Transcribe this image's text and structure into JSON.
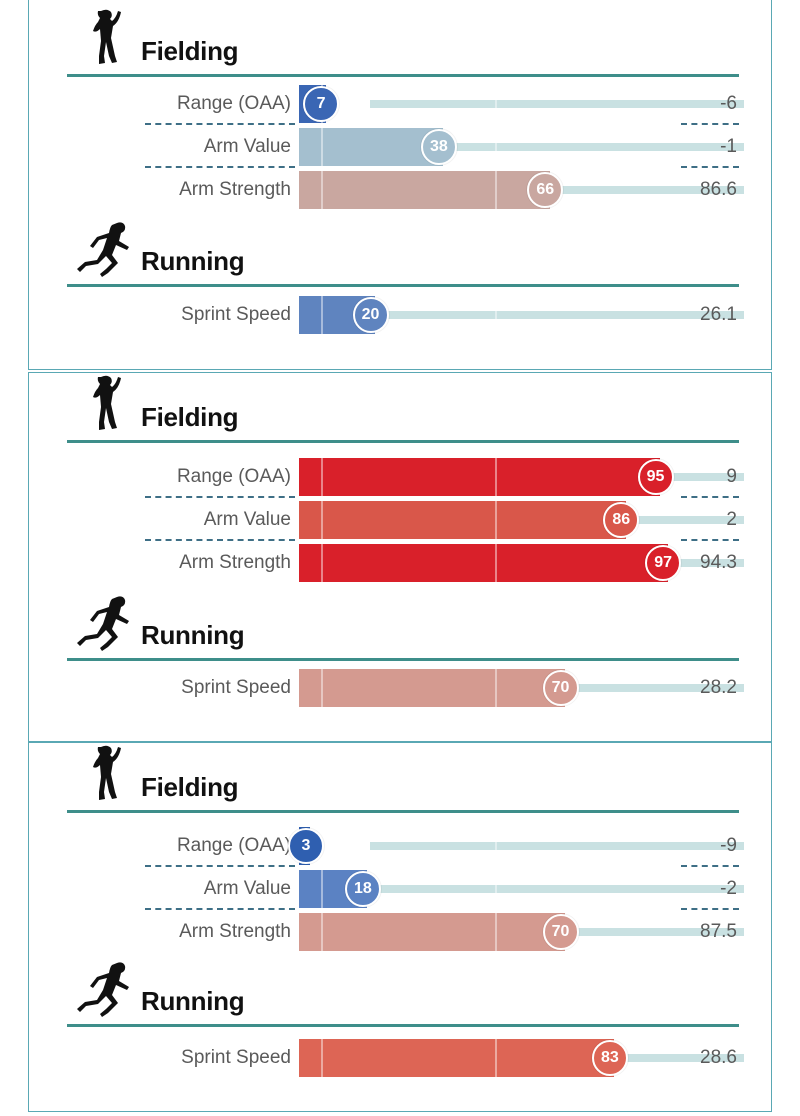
{
  "panels": [
    {
      "fielding": {
        "title": "Fielding",
        "rows": [
          {
            "label": "Range (OAA)",
            "percentile": 7,
            "value": "-6",
            "color": "#3a66b4"
          },
          {
            "label": "Arm Value",
            "percentile": 38,
            "value": "-1",
            "color": "#a4bfcf"
          },
          {
            "label": "Arm Strength",
            "percentile": 66,
            "value": "86.6",
            "color": "#c9a7a0"
          }
        ]
      },
      "running": {
        "title": "Running",
        "rows": [
          {
            "label": "Sprint Speed",
            "percentile": 20,
            "value": "26.1",
            "color": "#5f84bf"
          }
        ]
      }
    },
    {
      "fielding": {
        "title": "Fielding",
        "rows": [
          {
            "label": "Range (OAA)",
            "percentile": 95,
            "value": "9",
            "color": "#d9202a"
          },
          {
            "label": "Arm Value",
            "percentile": 86,
            "value": "2",
            "color": "#d9574a"
          },
          {
            "label": "Arm Strength",
            "percentile": 97,
            "value": "94.3",
            "color": "#d9202a"
          }
        ]
      },
      "running": {
        "title": "Running",
        "rows": [
          {
            "label": "Sprint Speed",
            "percentile": 70,
            "value": "28.2",
            "color": "#d49a90"
          }
        ]
      }
    },
    {
      "fielding": {
        "title": "Fielding",
        "rows": [
          {
            "label": "Range (OAA)",
            "percentile": 3,
            "value": "-9",
            "color": "#2f5fb0"
          },
          {
            "label": "Arm Value",
            "percentile": 18,
            "value": "-2",
            "color": "#5b82c3"
          },
          {
            "label": "Arm Strength",
            "percentile": 70,
            "value": "87.5",
            "color": "#d49a90"
          }
        ]
      },
      "running": {
        "title": "Running",
        "rows": [
          {
            "label": "Sprint Speed",
            "percentile": 83,
            "value": "28.6",
            "color": "#dd6555"
          }
        ]
      }
    }
  ],
  "icons": {
    "fielding": "fielder-silhouette-icon",
    "running": "runner-silhouette-icon"
  }
}
